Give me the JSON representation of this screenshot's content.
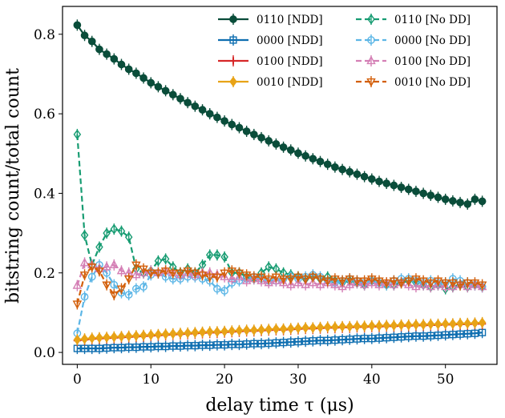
{
  "chart_data": {
    "type": "line",
    "title": "",
    "xlabel": "delay time τ (μs)",
    "ylabel": "bitstring count/total count",
    "xlim": [
      -2,
      57
    ],
    "ylim": [
      -0.03,
      0.87
    ],
    "xticks": [
      0,
      10,
      20,
      30,
      40,
      50
    ],
    "yticks": [
      0.0,
      0.2,
      0.4,
      0.6,
      0.8
    ],
    "xtick_labels": [
      "0",
      "10",
      "20",
      "30",
      "40",
      "50"
    ],
    "ytick_labels": [
      "0.0",
      "0.2",
      "0.4",
      "0.6",
      "0.8"
    ],
    "legend_position": "top-right",
    "series": [
      {
        "name": "0110 [NDD]",
        "color": "#0a4d3a",
        "marker": "circle",
        "dashed": false,
        "x": [
          0,
          1,
          2,
          3,
          4,
          5,
          6,
          7,
          8,
          9,
          10,
          11,
          12,
          13,
          14,
          15,
          16,
          17,
          18,
          19,
          20,
          21,
          22,
          23,
          24,
          25,
          26,
          27,
          28,
          29,
          30,
          31,
          32,
          33,
          34,
          35,
          36,
          37,
          38,
          39,
          40,
          41,
          42,
          43,
          44,
          45,
          46,
          47,
          48,
          49,
          50,
          51,
          52,
          53,
          54,
          55
        ],
        "y": [
          0.823,
          0.797,
          0.782,
          0.762,
          0.75,
          0.738,
          0.724,
          0.712,
          0.702,
          0.69,
          0.678,
          0.668,
          0.658,
          0.648,
          0.638,
          0.628,
          0.619,
          0.61,
          0.6,
          0.591,
          0.582,
          0.573,
          0.565,
          0.556,
          0.548,
          0.54,
          0.532,
          0.524,
          0.516,
          0.509,
          0.501,
          0.494,
          0.487,
          0.48,
          0.473,
          0.466,
          0.46,
          0.454,
          0.448,
          0.442,
          0.436,
          0.43,
          0.425,
          0.42,
          0.415,
          0.41,
          0.405,
          0.4,
          0.395,
          0.39,
          0.385,
          0.381,
          0.377,
          0.373,
          0.385,
          0.38
        ]
      },
      {
        "name": "0000 [NDD]",
        "color": "#0e6eb0",
        "marker": "square",
        "dashed": false,
        "x": [
          0,
          1,
          2,
          3,
          4,
          5,
          6,
          7,
          8,
          9,
          10,
          11,
          12,
          13,
          14,
          15,
          16,
          17,
          18,
          19,
          20,
          21,
          22,
          23,
          24,
          25,
          26,
          27,
          28,
          29,
          30,
          31,
          32,
          33,
          34,
          35,
          36,
          37,
          38,
          39,
          40,
          41,
          42,
          43,
          44,
          45,
          46,
          47,
          48,
          49,
          50,
          51,
          52,
          53,
          54,
          55
        ],
        "y": [
          0.01,
          0.01,
          0.01,
          0.01,
          0.011,
          0.012,
          0.012,
          0.013,
          0.013,
          0.014,
          0.014,
          0.015,
          0.015,
          0.016,
          0.016,
          0.017,
          0.017,
          0.018,
          0.018,
          0.019,
          0.019,
          0.02,
          0.02,
          0.021,
          0.022,
          0.022,
          0.023,
          0.024,
          0.025,
          0.026,
          0.027,
          0.028,
          0.029,
          0.03,
          0.03,
          0.031,
          0.032,
          0.033,
          0.034,
          0.035,
          0.035,
          0.036,
          0.037,
          0.038,
          0.039,
          0.04,
          0.041,
          0.041,
          0.042,
          0.043,
          0.044,
          0.045,
          0.046,
          0.047,
          0.048,
          0.05
        ]
      },
      {
        "name": "0100 [NDD]",
        "color": "#d62728",
        "marker": "plus",
        "dashed": false,
        "x": [
          0,
          1,
          2,
          3,
          4,
          5,
          6,
          7,
          8,
          9,
          10,
          11,
          12,
          13,
          14,
          15,
          16,
          17,
          18,
          19,
          20,
          21,
          22,
          23,
          24,
          25,
          26,
          27,
          28,
          29,
          30,
          31,
          32,
          33,
          34,
          35,
          36,
          37,
          38,
          39,
          40,
          41,
          42,
          43,
          44,
          45,
          46,
          47,
          48,
          49,
          50,
          51,
          52,
          53,
          54,
          55
        ],
        "y": [
          0.03,
          0.032,
          0.034,
          0.035,
          0.036,
          0.037,
          0.038,
          0.039,
          0.04,
          0.041,
          0.042,
          0.043,
          0.044,
          0.045,
          0.046,
          0.047,
          0.048,
          0.049,
          0.05,
          0.05,
          0.051,
          0.052,
          0.053,
          0.054,
          0.054,
          0.055,
          0.056,
          0.057,
          0.057,
          0.058,
          0.059,
          0.06,
          0.06,
          0.061,
          0.062,
          0.062,
          0.063,
          0.063,
          0.064,
          0.064,
          0.065,
          0.065,
          0.066,
          0.066,
          0.067,
          0.067,
          0.068,
          0.068,
          0.069,
          0.069,
          0.07,
          0.07,
          0.071,
          0.071,
          0.072,
          0.072
        ]
      },
      {
        "name": "0010 [NDD]",
        "color": "#e8a317",
        "marker": "diamond",
        "dashed": false,
        "x": [
          0,
          1,
          2,
          3,
          4,
          5,
          6,
          7,
          8,
          9,
          10,
          11,
          12,
          13,
          14,
          15,
          16,
          17,
          18,
          19,
          20,
          21,
          22,
          23,
          24,
          25,
          26,
          27,
          28,
          29,
          30,
          31,
          32,
          33,
          34,
          35,
          36,
          37,
          38,
          39,
          40,
          41,
          42,
          43,
          44,
          45,
          46,
          47,
          48,
          49,
          50,
          51,
          52,
          53,
          54,
          55
        ],
        "y": [
          0.032,
          0.034,
          0.036,
          0.037,
          0.038,
          0.039,
          0.04,
          0.041,
          0.042,
          0.043,
          0.044,
          0.045,
          0.046,
          0.047,
          0.048,
          0.049,
          0.05,
          0.051,
          0.052,
          0.052,
          0.053,
          0.054,
          0.055,
          0.056,
          0.056,
          0.057,
          0.058,
          0.059,
          0.059,
          0.06,
          0.061,
          0.062,
          0.062,
          0.063,
          0.064,
          0.064,
          0.065,
          0.065,
          0.066,
          0.066,
          0.067,
          0.067,
          0.068,
          0.068,
          0.069,
          0.069,
          0.07,
          0.07,
          0.071,
          0.071,
          0.072,
          0.072,
          0.073,
          0.073,
          0.074,
          0.075
        ]
      },
      {
        "name": "0110 [No DD]",
        "color": "#179c72",
        "marker": "diamond-open",
        "dashed": true,
        "x": [
          0,
          1,
          2,
          3,
          4,
          5,
          6,
          7,
          8,
          9,
          10,
          11,
          12,
          13,
          14,
          15,
          16,
          17,
          18,
          19,
          20,
          21,
          22,
          23,
          24,
          25,
          26,
          27,
          28,
          29,
          30,
          31,
          32,
          33,
          34,
          35,
          36,
          37,
          38,
          39,
          40,
          41,
          42,
          43,
          44,
          45,
          46,
          47,
          48,
          49,
          50,
          51,
          52,
          53,
          54,
          55
        ],
        "y": [
          0.548,
          0.295,
          0.22,
          0.265,
          0.3,
          0.31,
          0.305,
          0.29,
          0.21,
          0.2,
          0.205,
          0.23,
          0.235,
          0.215,
          0.2,
          0.21,
          0.2,
          0.22,
          0.245,
          0.245,
          0.24,
          0.2,
          0.2,
          0.19,
          0.185,
          0.2,
          0.215,
          0.21,
          0.2,
          0.195,
          0.19,
          0.185,
          0.19,
          0.185,
          0.19,
          0.18,
          0.175,
          0.18,
          0.175,
          0.17,
          0.18,
          0.175,
          0.17,
          0.17,
          0.175,
          0.18,
          0.175,
          0.17,
          0.165,
          0.17,
          0.16,
          0.165,
          0.17,
          0.165,
          0.17,
          0.165
        ]
      },
      {
        "name": "0000 [No DD]",
        "color": "#5cb6e6",
        "marker": "circle-open",
        "dashed": true,
        "x": [
          0,
          1,
          2,
          3,
          4,
          5,
          6,
          7,
          8,
          9,
          10,
          11,
          12,
          13,
          14,
          15,
          16,
          17,
          18,
          19,
          20,
          21,
          22,
          23,
          24,
          25,
          26,
          27,
          28,
          29,
          30,
          31,
          32,
          33,
          34,
          35,
          36,
          37,
          38,
          39,
          40,
          41,
          42,
          43,
          44,
          45,
          46,
          47,
          48,
          49,
          50,
          51,
          52,
          53,
          54,
          55
        ],
        "y": [
          0.048,
          0.14,
          0.19,
          0.22,
          0.2,
          0.17,
          0.15,
          0.145,
          0.16,
          0.165,
          0.195,
          0.2,
          0.19,
          0.185,
          0.185,
          0.19,
          0.19,
          0.185,
          0.18,
          0.16,
          0.155,
          0.175,
          0.18,
          0.185,
          0.19,
          0.185,
          0.18,
          0.18,
          0.185,
          0.19,
          0.185,
          0.19,
          0.195,
          0.19,
          0.18,
          0.175,
          0.18,
          0.185,
          0.18,
          0.175,
          0.18,
          0.175,
          0.17,
          0.18,
          0.185,
          0.185,
          0.18,
          0.175,
          0.18,
          0.175,
          0.175,
          0.185,
          0.18,
          0.175,
          0.17,
          0.165
        ]
      },
      {
        "name": "0100 [No DD]",
        "color": "#d47fb5",
        "marker": "triangle-up-open",
        "dashed": true,
        "x": [
          0,
          1,
          2,
          3,
          4,
          5,
          6,
          7,
          8,
          9,
          10,
          11,
          12,
          13,
          14,
          15,
          16,
          17,
          18,
          19,
          20,
          21,
          22,
          23,
          24,
          25,
          26,
          27,
          28,
          29,
          30,
          31,
          32,
          33,
          34,
          35,
          36,
          37,
          38,
          39,
          40,
          41,
          42,
          43,
          44,
          45,
          46,
          47,
          48,
          49,
          50,
          51,
          52,
          53,
          54,
          55
        ],
        "y": [
          0.168,
          0.225,
          0.22,
          0.21,
          0.215,
          0.22,
          0.205,
          0.2,
          0.195,
          0.2,
          0.205,
          0.2,
          0.205,
          0.2,
          0.195,
          0.2,
          0.195,
          0.2,
          0.2,
          0.195,
          0.19,
          0.185,
          0.19,
          0.18,
          0.185,
          0.18,
          0.175,
          0.18,
          0.175,
          0.17,
          0.175,
          0.17,
          0.175,
          0.17,
          0.175,
          0.17,
          0.165,
          0.17,
          0.175,
          0.17,
          0.175,
          0.17,
          0.175,
          0.17,
          0.175,
          0.17,
          0.165,
          0.17,
          0.165,
          0.17,
          0.165,
          0.165,
          0.17,
          0.165,
          0.17,
          0.165
        ]
      },
      {
        "name": "0010 [No DD]",
        "color": "#d35f0a",
        "marker": "triangle-down-open",
        "dashed": true,
        "x": [
          0,
          1,
          2,
          3,
          4,
          5,
          6,
          7,
          8,
          9,
          10,
          11,
          12,
          13,
          14,
          15,
          16,
          17,
          18,
          19,
          20,
          21,
          22,
          23,
          24,
          25,
          26,
          27,
          28,
          29,
          30,
          31,
          32,
          33,
          34,
          35,
          36,
          37,
          38,
          39,
          40,
          41,
          42,
          43,
          44,
          45,
          46,
          47,
          48,
          49,
          50,
          51,
          52,
          53,
          54,
          55
        ],
        "y": [
          0.122,
          0.195,
          0.215,
          0.205,
          0.17,
          0.145,
          0.16,
          0.185,
          0.22,
          0.21,
          0.2,
          0.2,
          0.205,
          0.2,
          0.2,
          0.205,
          0.2,
          0.195,
          0.19,
          0.19,
          0.2,
          0.205,
          0.2,
          0.195,
          0.19,
          0.19,
          0.185,
          0.19,
          0.185,
          0.185,
          0.19,
          0.185,
          0.19,
          0.185,
          0.18,
          0.185,
          0.18,
          0.185,
          0.18,
          0.18,
          0.185,
          0.18,
          0.175,
          0.18,
          0.175,
          0.18,
          0.185,
          0.18,
          0.175,
          0.18,
          0.175,
          0.175,
          0.17,
          0.175,
          0.175,
          0.17
        ]
      }
    ]
  }
}
